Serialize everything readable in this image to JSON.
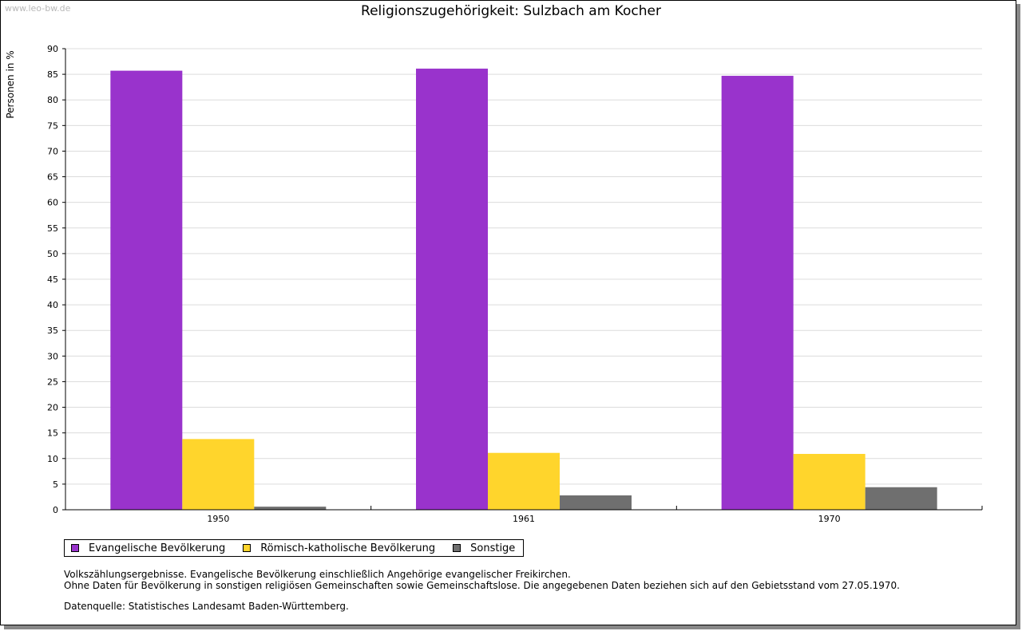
{
  "watermark": "www.leo-bw.de",
  "chart_data": {
    "type": "bar",
    "title": "Religionszugehörigkeit: Sulzbach am Kocher",
    "ylabel": "Personen in %",
    "xlabel": "",
    "ylim": [
      0,
      90
    ],
    "yticks": [
      0,
      5,
      10,
      15,
      20,
      25,
      30,
      35,
      40,
      45,
      50,
      55,
      60,
      65,
      70,
      75,
      80,
      85,
      90
    ],
    "grid": true,
    "legend_position": "bottom-left",
    "categories": [
      "1950",
      "1961",
      "1970"
    ],
    "series": [
      {
        "name": "Evangelische Bevölkerung",
        "color": "#9933cc",
        "values": [
          85.7,
          86.1,
          84.7
        ]
      },
      {
        "name": "Römisch-katholische Bevölkerung",
        "color": "#ffd52c",
        "values": [
          13.8,
          11.1,
          10.9
        ]
      },
      {
        "name": "Sonstige",
        "color": "#6f6f6f",
        "values": [
          0.6,
          2.8,
          4.4
        ]
      }
    ]
  },
  "notes": {
    "line1": "Volkszählungsergebnisse. Evangelische Bevölkerung einschließlich Angehörige evangelischer Freikirchen.",
    "line2": "Ohne Daten für Bevölkerung in sonstigen religiösen Gemeinschaften sowie Gemeinschaftslose. Die angegebenen Daten beziehen sich auf den Gebietsstand vom 27.05.1970.",
    "source": "Datenquelle: Statistisches Landesamt Baden-Württemberg."
  }
}
